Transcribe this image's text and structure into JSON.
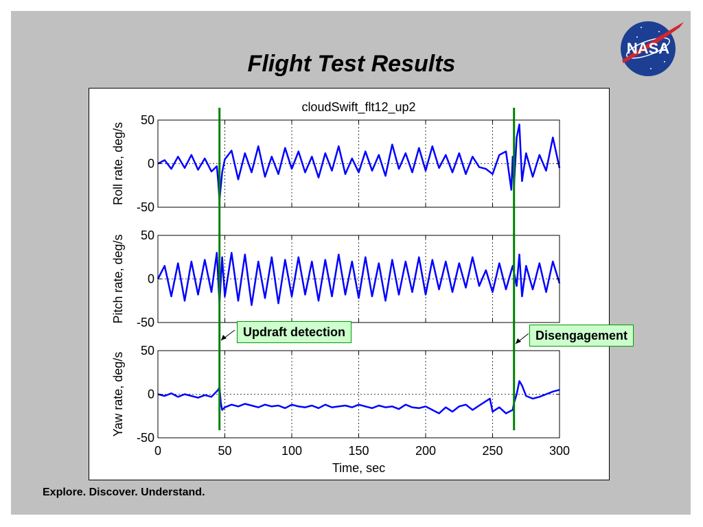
{
  "slide": {
    "title": "Flight Test Results",
    "footer": "Explore. Discover. Understand.",
    "logo_text": "NASA"
  },
  "callouts": {
    "updraft": "Updraft detection",
    "disengagement": "Disengagement"
  },
  "chart_data": {
    "type": "line",
    "title": "cloudSwift_flt12_up2",
    "xlabel": "Time, sec",
    "xlim": [
      0,
      300
    ],
    "x_ticks": [
      "0",
      "50",
      "100",
      "150",
      "200",
      "250",
      "300"
    ],
    "grid": true,
    "line_color": "#0000ff",
    "marker_color": "#008000",
    "event_markers": [
      {
        "time": 46,
        "label": "Updraft detection"
      },
      {
        "time": 266,
        "label": "Disengagement"
      }
    ],
    "subplots": [
      {
        "ylabel": "Roll rate, deg/s",
        "ylim": [
          -50,
          50
        ],
        "y_ticks": [
          "-50",
          "0",
          "50"
        ],
        "series": {
          "x": [
            0,
            5,
            10,
            15,
            20,
            25,
            30,
            35,
            40,
            44,
            45,
            46,
            48,
            50,
            55,
            60,
            65,
            70,
            75,
            80,
            85,
            90,
            95,
            100,
            105,
            110,
            115,
            120,
            125,
            130,
            135,
            140,
            145,
            150,
            155,
            160,
            165,
            170,
            175,
            180,
            185,
            190,
            195,
            200,
            205,
            210,
            215,
            220,
            225,
            230,
            235,
            240,
            245,
            250,
            255,
            260,
            264,
            265,
            266,
            268,
            270,
            272,
            275,
            280,
            285,
            290,
            295,
            300
          ],
          "y": [
            0,
            4,
            -6,
            8,
            -5,
            10,
            -7,
            6,
            -9,
            -3,
            -20,
            -42,
            -10,
            5,
            15,
            -18,
            12,
            -10,
            20,
            -15,
            8,
            -12,
            18,
            -6,
            14,
            -10,
            8,
            -16,
            12,
            -8,
            20,
            -12,
            6,
            -10,
            14,
            -8,
            10,
            -14,
            22,
            -6,
            12,
            -10,
            18,
            -8,
            20,
            -5,
            10,
            -10,
            12,
            -12,
            8,
            -4,
            -6,
            -12,
            10,
            14,
            -30,
            8,
            -25,
            30,
            45,
            -20,
            12,
            -15,
            10,
            -8,
            30,
            -5
          ]
        }
      },
      {
        "ylabel": "Pitch rate, deg/s",
        "ylim": [
          -50,
          50
        ],
        "y_ticks": [
          "-50",
          "0",
          "50"
        ],
        "series": {
          "x": [
            0,
            5,
            10,
            15,
            20,
            25,
            30,
            35,
            40,
            44,
            46,
            48,
            50,
            55,
            60,
            65,
            70,
            75,
            80,
            85,
            90,
            95,
            100,
            105,
            110,
            115,
            120,
            125,
            130,
            135,
            140,
            145,
            150,
            155,
            160,
            165,
            170,
            175,
            180,
            185,
            190,
            195,
            200,
            205,
            210,
            215,
            220,
            225,
            230,
            235,
            240,
            245,
            250,
            255,
            260,
            265,
            268,
            270,
            272,
            275,
            280,
            285,
            290,
            295,
            300
          ],
          "y": [
            0,
            15,
            -20,
            18,
            -25,
            20,
            -18,
            22,
            -15,
            30,
            -28,
            25,
            -20,
            30,
            -25,
            28,
            -30,
            20,
            -22,
            25,
            -28,
            22,
            -20,
            25,
            -18,
            20,
            -25,
            22,
            -20,
            28,
            -18,
            20,
            -22,
            25,
            -20,
            18,
            -25,
            22,
            -18,
            20,
            -15,
            25,
            -18,
            22,
            -12,
            20,
            -15,
            18,
            -10,
            25,
            -8,
            10,
            -15,
            18,
            -12,
            15,
            -8,
            28,
            -20,
            15,
            -12,
            18,
            -15,
            20,
            -5
          ]
        }
      },
      {
        "ylabel": "Yaw rate, deg/s",
        "ylim": [
          -50,
          50
        ],
        "y_ticks": [
          "-50",
          "0",
          "50"
        ],
        "series": {
          "x": [
            0,
            5,
            10,
            15,
            20,
            25,
            30,
            35,
            40,
            45,
            46,
            47,
            48,
            50,
            55,
            60,
            65,
            70,
            75,
            80,
            85,
            90,
            95,
            100,
            105,
            110,
            115,
            120,
            125,
            130,
            135,
            140,
            145,
            150,
            155,
            160,
            165,
            170,
            175,
            180,
            185,
            190,
            195,
            200,
            205,
            210,
            215,
            220,
            225,
            230,
            235,
            240,
            245,
            248,
            250,
            255,
            260,
            265,
            266,
            268,
            270,
            272,
            275,
            280,
            285,
            290,
            295,
            300
          ],
          "y": [
            0,
            -2,
            1,
            -3,
            0,
            -2,
            -4,
            -1,
            -3,
            5,
            8,
            -10,
            -18,
            -15,
            -12,
            -14,
            -11,
            -13,
            -15,
            -12,
            -14,
            -13,
            -16,
            -12,
            -14,
            -15,
            -13,
            -16,
            -12,
            -15,
            -14,
            -13,
            -15,
            -12,
            -14,
            -16,
            -13,
            -15,
            -14,
            -17,
            -12,
            -15,
            -16,
            -14,
            -18,
            -22,
            -15,
            -20,
            -14,
            -12,
            -18,
            -13,
            -8,
            -5,
            -20,
            -15,
            -22,
            -18,
            -10,
            0,
            15,
            10,
            -2,
            -5,
            -3,
            0,
            3,
            5
          ]
        }
      }
    ]
  }
}
